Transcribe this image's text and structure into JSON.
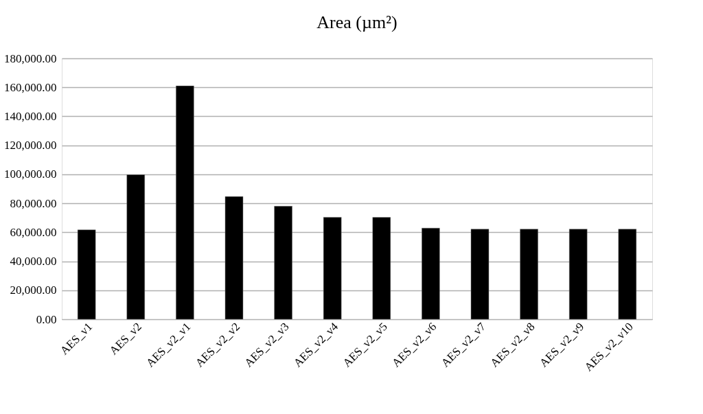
{
  "chart_data": {
    "type": "bar",
    "title": "Area (µm²)",
    "categories": [
      "AES_v1",
      "AES_v2",
      "AES_v2_v1",
      "AES_v2_v2",
      "AES_v2_v3",
      "AES_v2_v4",
      "AES_v2_v5",
      "AES_v2_v6",
      "AES_v2_v7",
      "AES_v2_v8",
      "AES_v2_v9",
      "AES_v2_v10"
    ],
    "values": [
      61700,
      99700,
      161000,
      84700,
      78000,
      70400,
      70300,
      62900,
      62200,
      62200,
      62200,
      62200
    ],
    "color": "#000000",
    "ylim": [
      0,
      180000
    ],
    "yticks": [
      {
        "value": 0,
        "label": "0.00"
      },
      {
        "value": 20000,
        "label": "20,000.00"
      },
      {
        "value": 40000,
        "label": "40,000.00"
      },
      {
        "value": 60000,
        "label": "60,000.00"
      },
      {
        "value": 80000,
        "label": "80,000.00"
      },
      {
        "value": 100000,
        "label": "100,000.00"
      },
      {
        "value": 120000,
        "label": "120,000.00"
      },
      {
        "value": 140000,
        "label": "140,000.00"
      },
      {
        "value": 160000,
        "label": "160,000.00"
      },
      {
        "value": 180000,
        "label": "180,000.00"
      }
    ],
    "grid": "y"
  }
}
